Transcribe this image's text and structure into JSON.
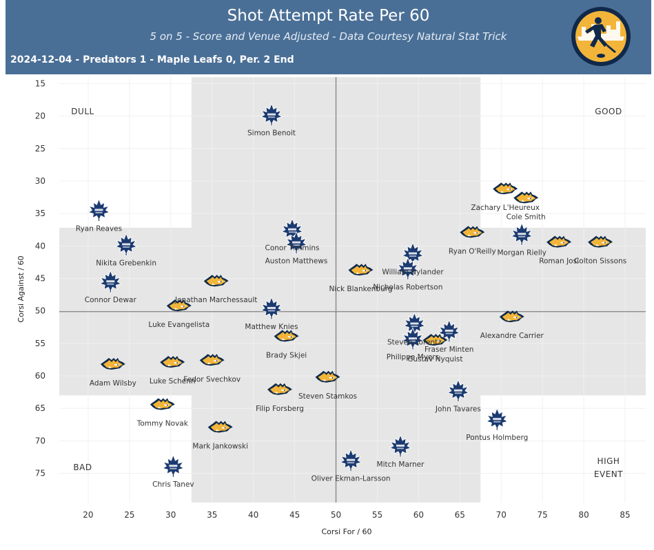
{
  "header": {
    "title": "Shot Attempt Rate Per 60",
    "subtitle": "5 on 5 - Score and Venue Adjusted - Data Courtesy Natural Stat Trick",
    "game_info": "2024-12-04 - Predators 1 - Maple Leafs 0, Per. 2 End"
  },
  "logo": {
    "icon": "hockey-player-logo-icon"
  },
  "colors": {
    "header_bg": "#4a6f96",
    "leafs_blue": "#1b3a70",
    "preds_gold": "#f2b53a",
    "preds_navy": "#0f2a4a",
    "quadrant_shade": "#e6e6e6"
  },
  "chart_data": {
    "type": "scatter",
    "xlabel": "Corsi For / 60",
    "ylabel": "Corsi Against / 60",
    "xlim": [
      16.5,
      87.5
    ],
    "ylim": [
      79.5,
      14
    ],
    "y_inverted": true,
    "x_ticks": [
      20,
      25,
      30,
      35,
      40,
      45,
      50,
      55,
      60,
      65,
      70,
      75,
      80,
      85
    ],
    "y_ticks": [
      15,
      20,
      25,
      30,
      35,
      40,
      45,
      50,
      55,
      60,
      65,
      70,
      75
    ],
    "x_mean": 50,
    "y_mean": 50.1,
    "shaded_bands": {
      "x_range": [
        32.5,
        67.5
      ],
      "y_range": [
        37.2,
        63.0
      ]
    },
    "corner_labels": {
      "top_left": "DULL",
      "top_right": "GOOD",
      "bottom_left": "BAD",
      "bottom_right_1": "HIGH",
      "bottom_right_2": "EVENT"
    },
    "series": [
      {
        "name": "Maple Leafs",
        "points": [
          {
            "player": "Simon Benoit",
            "x": 42.2,
            "y": 19.8
          },
          {
            "player": "Ryan Reaves",
            "x": 21.3,
            "y": 34.5
          },
          {
            "player": "Nikita Grebenkin",
            "x": 24.6,
            "y": 39.8
          },
          {
            "player": "Connor Dewar",
            "x": 22.7,
            "y": 45.5
          },
          {
            "player": "Conor Timmins",
            "x": 44.7,
            "y": 37.5
          },
          {
            "player": "Auston Matthews",
            "x": 45.2,
            "y": 39.5
          },
          {
            "player": "Matthew Knies",
            "x": 42.2,
            "y": 49.6
          },
          {
            "player": "William Nylander",
            "x": 59.3,
            "y": 41.2
          },
          {
            "player": "Nicholas Robertson",
            "x": 58.7,
            "y": 43.5
          },
          {
            "player": "Steven Lorentz",
            "x": 59.5,
            "y": 52.0
          },
          {
            "player": "Philippe Myers",
            "x": 59.3,
            "y": 54.3
          },
          {
            "player": "Fraser Minten",
            "x": 63.7,
            "y": 53.1
          },
          {
            "player": "Morgan Rielly",
            "x": 72.5,
            "y": 38.2
          },
          {
            "player": "John Tavares",
            "x": 64.8,
            "y": 62.3
          },
          {
            "player": "Pontus Holmberg",
            "x": 69.5,
            "y": 66.7
          },
          {
            "player": "Mitch Marner",
            "x": 57.8,
            "y": 70.8
          },
          {
            "player": "Oliver Ekman-Larsson",
            "x": 51.8,
            "y": 73.0
          },
          {
            "player": "Chris Tanev",
            "x": 30.3,
            "y": 73.9
          }
        ]
      },
      {
        "name": "Predators",
        "points": [
          {
            "player": "Zachary L'Heureux",
            "x": 70.5,
            "y": 31.3
          },
          {
            "player": "Cole Smith",
            "x": 73.0,
            "y": 32.7
          },
          {
            "player": "Ryan O'Reilly",
            "x": 66.5,
            "y": 38.0
          },
          {
            "player": "Roman Josi",
            "x": 77.0,
            "y": 39.5
          },
          {
            "player": "Colton Sissons",
            "x": 82.0,
            "y": 39.5
          },
          {
            "player": "Nick Blankenburg",
            "x": 53.0,
            "y": 43.8
          },
          {
            "player": "Jonathan Marchessault",
            "x": 35.5,
            "y": 45.5
          },
          {
            "player": "Luke Evangelista",
            "x": 31.0,
            "y": 49.3
          },
          {
            "player": "Brady Skjei",
            "x": 44.0,
            "y": 54.0
          },
          {
            "player": "Gustav Nyquist",
            "x": 62.0,
            "y": 54.6
          },
          {
            "player": "Alexandre Carrier",
            "x": 71.3,
            "y": 51.0
          },
          {
            "player": "Adam Wilsby",
            "x": 23.0,
            "y": 58.3
          },
          {
            "player": "Luke Schenn",
            "x": 30.2,
            "y": 58.0
          },
          {
            "player": "Fedor Svechkov",
            "x": 35.0,
            "y": 57.7
          },
          {
            "player": "Steven Stamkos",
            "x": 49.0,
            "y": 60.3
          },
          {
            "player": "Filip Forsberg",
            "x": 43.2,
            "y": 62.2
          },
          {
            "player": "Tommy Novak",
            "x": 29.0,
            "y": 64.5
          },
          {
            "player": "Mark Jankowski",
            "x": 36.0,
            "y": 68.0
          }
        ]
      }
    ]
  }
}
